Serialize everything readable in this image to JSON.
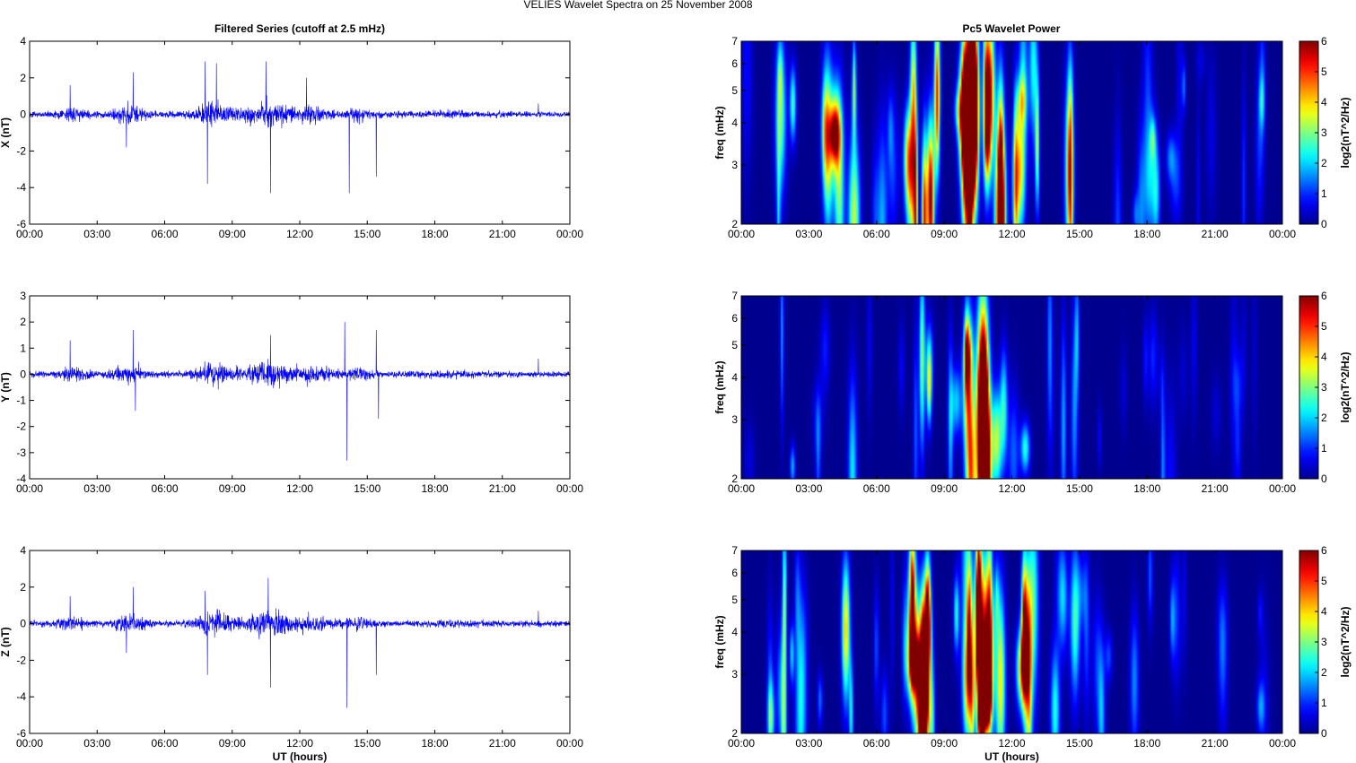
{
  "figure": {
    "suptitle": "VELIES Wavelet Spectra on 25 November  2008",
    "left_title": "Filtered Series (cutoff at 2.5 mHz)",
    "right_title": "Pc5 Wavelet Power",
    "xlabel": "UT (hours)"
  },
  "colors": {
    "trace": "#0000ff",
    "jet_stops": [
      "#00008f",
      "#0000ff",
      "#00ffff",
      "#ffff00",
      "#ff0000",
      "#800000"
    ]
  },
  "chart_data": [
    {
      "type": "line",
      "panel": "X",
      "ylabel": "X (nT)",
      "x_ticks": [
        "00:00",
        "03:00",
        "06:00",
        "09:00",
        "12:00",
        "15:00",
        "18:00",
        "21:00",
        "00:00"
      ],
      "xlim_hours": [
        0,
        24
      ],
      "ylim": [
        -6,
        4
      ],
      "y_ticks": [
        "-6",
        "-4",
        "-2",
        "0",
        "2",
        "4"
      ],
      "y_tick_values": [
        -6,
        -4,
        -2,
        0,
        2,
        4
      ],
      "spikes": [
        {
          "hour": 1.8,
          "value": 1.6
        },
        {
          "hour": 4.6,
          "value": 2.3
        },
        {
          "hour": 4.3,
          "value": -1.8
        },
        {
          "hour": 7.8,
          "value": 2.9
        },
        {
          "hour": 7.9,
          "value": -3.8
        },
        {
          "hour": 8.3,
          "value": 2.8
        },
        {
          "hour": 10.5,
          "value": 2.9
        },
        {
          "hour": 10.7,
          "value": -4.3
        },
        {
          "hour": 12.3,
          "value": 2.0
        },
        {
          "hour": 14.2,
          "value": -4.3
        },
        {
          "hour": 15.4,
          "value": -3.4
        },
        {
          "hour": 22.6,
          "value": 0.6
        }
      ]
    },
    {
      "type": "line",
      "panel": "Y",
      "ylabel": "Y (nT)",
      "x_ticks": [
        "00:00",
        "03:00",
        "06:00",
        "09:00",
        "12:00",
        "15:00",
        "18:00",
        "21:00",
        "00:00"
      ],
      "xlim_hours": [
        0,
        24
      ],
      "ylim": [
        -4,
        3
      ],
      "y_ticks": [
        "-4",
        "-3",
        "-2",
        "-1",
        "0",
        "1",
        "2",
        "3"
      ],
      "y_tick_values": [
        -4,
        -3,
        -2,
        -1,
        0,
        1,
        2,
        3
      ],
      "spikes": [
        {
          "hour": 1.8,
          "value": 1.3
        },
        {
          "hour": 4.6,
          "value": 1.7
        },
        {
          "hour": 4.7,
          "value": -1.4
        },
        {
          "hour": 10.7,
          "value": 1.5
        },
        {
          "hour": 14.0,
          "value": 2.0
        },
        {
          "hour": 14.1,
          "value": -3.3
        },
        {
          "hour": 15.4,
          "value": 1.7
        },
        {
          "hour": 15.5,
          "value": -1.7
        },
        {
          "hour": 22.6,
          "value": 0.6
        }
      ]
    },
    {
      "type": "line",
      "panel": "Z",
      "ylabel": "Z (nT)",
      "x_ticks": [
        "00:00",
        "03:00",
        "06:00",
        "09:00",
        "12:00",
        "15:00",
        "18:00",
        "21:00",
        "00:00"
      ],
      "xlim_hours": [
        0,
        24
      ],
      "ylim": [
        -6,
        4
      ],
      "y_ticks": [
        "-6",
        "-4",
        "-2",
        "0",
        "2",
        "4"
      ],
      "y_tick_values": [
        -6,
        -4,
        -2,
        0,
        2,
        4
      ],
      "spikes": [
        {
          "hour": 1.8,
          "value": 1.5
        },
        {
          "hour": 4.6,
          "value": 2.0
        },
        {
          "hour": 4.3,
          "value": -1.6
        },
        {
          "hour": 7.8,
          "value": 1.8
        },
        {
          "hour": 7.9,
          "value": -2.8
        },
        {
          "hour": 10.6,
          "value": 2.5
        },
        {
          "hour": 10.7,
          "value": -3.5
        },
        {
          "hour": 14.1,
          "value": -4.6
        },
        {
          "hour": 15.4,
          "value": -2.8
        },
        {
          "hour": 22.6,
          "value": 0.7
        }
      ]
    },
    {
      "type": "heatmap",
      "panel": "X",
      "ylabel": "freq (mHz)",
      "x_ticks": [
        "00:00",
        "03:00",
        "06:00",
        "09:00",
        "12:00",
        "15:00",
        "18:00",
        "21:00",
        "00:00"
      ],
      "xlim_hours": [
        0,
        24
      ],
      "y_scale": "log",
      "ylim_mHz": [
        2,
        7
      ],
      "y_ticks": [
        "2",
        "3",
        "4",
        "5",
        "6",
        "7"
      ],
      "y_tick_values": [
        2,
        3,
        4,
        5,
        6,
        7
      ],
      "colorbar_label": "log2(nT^2/Hz)",
      "colorbar_ticks": [
        "0",
        "1",
        "2",
        "3",
        "4",
        "5",
        "6"
      ],
      "clim": [
        0,
        6
      ],
      "activity_level": 1.0
    },
    {
      "type": "heatmap",
      "panel": "Y",
      "ylabel": "freq (mHz)",
      "x_ticks": [
        "00:00",
        "03:00",
        "06:00",
        "09:00",
        "12:00",
        "15:00",
        "18:00",
        "21:00",
        "00:00"
      ],
      "xlim_hours": [
        0,
        24
      ],
      "y_scale": "log",
      "ylim_mHz": [
        2,
        7
      ],
      "y_ticks": [
        "2",
        "3",
        "4",
        "5",
        "6",
        "7"
      ],
      "y_tick_values": [
        2,
        3,
        4,
        5,
        6,
        7
      ],
      "colorbar_label": "log2(nT^2/Hz)",
      "colorbar_ticks": [
        "0",
        "1",
        "2",
        "3",
        "4",
        "5",
        "6"
      ],
      "clim": [
        0,
        6
      ],
      "activity_level": 0.62
    },
    {
      "type": "heatmap",
      "panel": "Z",
      "ylabel": "freq (mHz)",
      "x_ticks": [
        "00:00",
        "03:00",
        "06:00",
        "09:00",
        "12:00",
        "15:00",
        "18:00",
        "21:00",
        "00:00"
      ],
      "xlim_hours": [
        0,
        24
      ],
      "y_scale": "log",
      "ylim_mHz": [
        2,
        7
      ],
      "y_ticks": [
        "2",
        "3",
        "4",
        "5",
        "6",
        "7"
      ],
      "y_tick_values": [
        2,
        3,
        4,
        5,
        6,
        7
      ],
      "colorbar_label": "log2(nT^2/Hz)",
      "colorbar_ticks": [
        "0",
        "1",
        "2",
        "3",
        "4",
        "5",
        "6"
      ],
      "clim": [
        0,
        6
      ],
      "activity_level": 0.95
    }
  ]
}
